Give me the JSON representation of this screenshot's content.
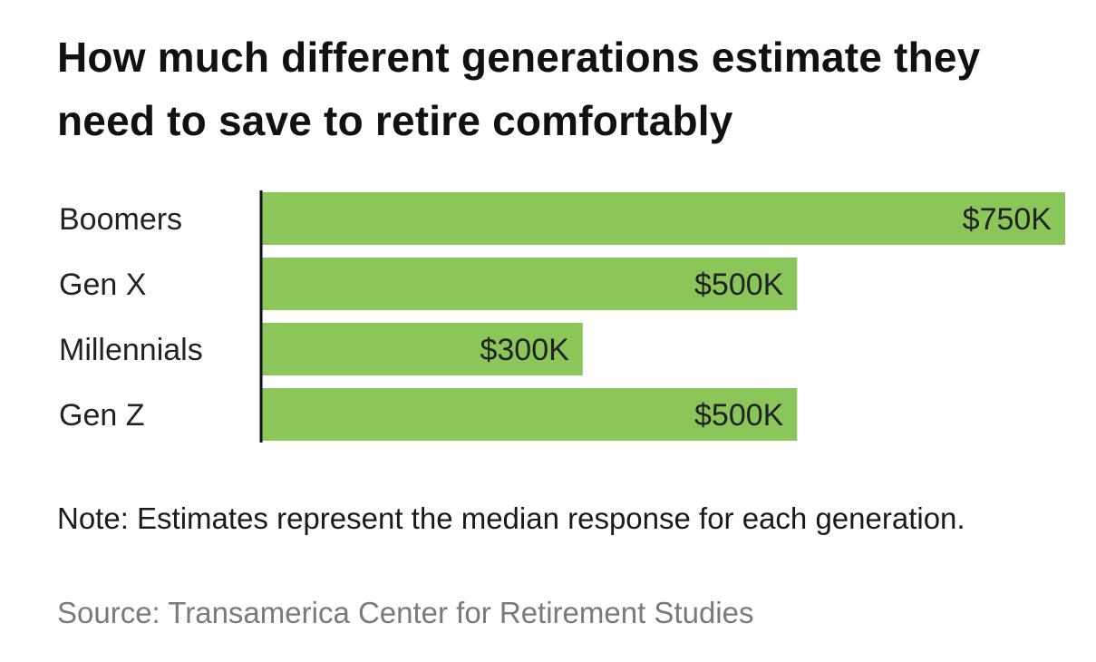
{
  "title": "How much different generations estimate they need to save to retire comfortably",
  "note": "Note: Estimates represent the median response for each generation.",
  "source": "Source: Transamerica Center for Retirement Studies",
  "colors": {
    "bar": "#8bc65a",
    "axis": "#111111"
  },
  "chart_data": {
    "type": "bar",
    "orientation": "horizontal",
    "title": "How much different generations estimate they need to save to retire comfortably",
    "categories": [
      "Boomers",
      "Gen X",
      "Millennials",
      "Gen Z"
    ],
    "values": [
      750,
      500,
      300,
      500
    ],
    "value_labels": [
      "$750K",
      "$500K",
      "$300K",
      "$500K"
    ],
    "unit": "thousand dollars",
    "xlim": [
      0,
      750
    ],
    "grid": false,
    "legend": "none"
  }
}
